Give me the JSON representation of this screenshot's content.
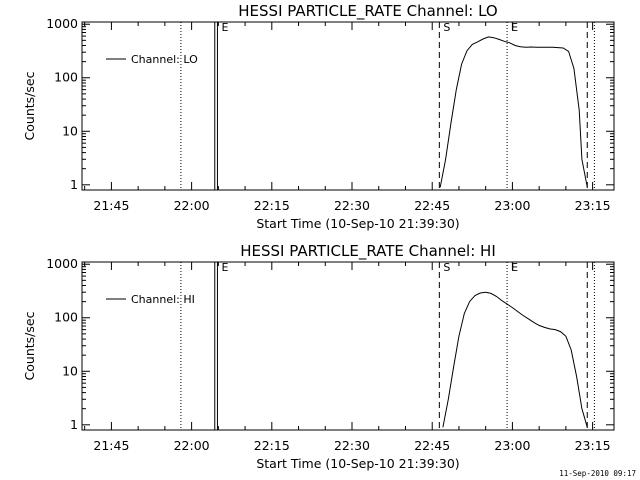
{
  "chart_data": [
    {
      "type": "line",
      "title": "HESSI PARTICLE_RATE Channel: LO",
      "xlabel": "Start Time (10-Sep-10 21:39:30)",
      "ylabel": "Counts/sec",
      "y_scale": "log",
      "xlim": [
        "21:39:30",
        "23:19:00"
      ],
      "ylim": [
        0.8,
        1100
      ],
      "x_ticks": [
        "21:45",
        "22:00",
        "22:15",
        "22:30",
        "22:45",
        "23:00",
        "23:15"
      ],
      "y_ticks": [
        {
          "value": 1,
          "label": "1"
        },
        {
          "value": 10,
          "label": "10"
        },
        {
          "value": 100,
          "label": "100"
        },
        {
          "value": 1000,
          "label": "1000"
        }
      ],
      "legend": {
        "position": "top-left",
        "entries": [
          "Channel: LO"
        ]
      },
      "series": [
        {
          "name": "Channel: LO",
          "x": [
            "22:46:30",
            "22:47:30",
            "22:48:30",
            "22:49:30",
            "22:50:30",
            "22:51:30",
            "22:52:30",
            "22:53:30",
            "22:54:30",
            "22:55:30",
            "22:56:30",
            "22:57:30",
            "22:58:30",
            "22:59:30",
            "23:00:30",
            "23:01:30",
            "23:02:30",
            "23:03:30",
            "23:04:30",
            "23:05:30",
            "23:06:30",
            "23:07:30",
            "23:08:30",
            "23:09:30",
            "23:10:30",
            "23:11:30",
            "23:12:30",
            "23:13:00",
            "23:14:00"
          ],
          "y": [
            0.9,
            3,
            14,
            60,
            180,
            320,
            420,
            470,
            530,
            580,
            560,
            520,
            480,
            450,
            400,
            380,
            370,
            375,
            370,
            370,
            370,
            370,
            365,
            360,
            310,
            150,
            25,
            3,
            0.9
          ]
        }
      ],
      "vertical_lines": [
        {
          "x": "21:58:00",
          "style": "dotted"
        },
        {
          "x": "22:04:20",
          "style": "solid"
        },
        {
          "x": "22:04:50",
          "style": "solid"
        },
        {
          "x": "22:46:20",
          "style": "dashed"
        },
        {
          "x": "22:59:00",
          "style": "dotted"
        },
        {
          "x": "23:14:00",
          "style": "dashed"
        },
        {
          "x": "23:15:20",
          "style": "dotted"
        }
      ],
      "markers": [
        {
          "x": "22:04:50",
          "label": "E"
        },
        {
          "x": "22:46:20",
          "label": "S"
        },
        {
          "x": "22:59:00",
          "label": "E"
        }
      ]
    },
    {
      "type": "line",
      "title": "HESSI PARTICLE_RATE Channel: HI",
      "xlabel": "Start Time (10-Sep-10 21:39:30)",
      "ylabel": "Counts/sec",
      "y_scale": "log",
      "xlim": [
        "21:39:30",
        "23:19:00"
      ],
      "ylim": [
        0.8,
        1100
      ],
      "x_ticks": [
        "21:45",
        "22:00",
        "22:15",
        "22:30",
        "22:45",
        "23:00",
        "23:15"
      ],
      "y_ticks": [
        {
          "value": 1,
          "label": "1"
        },
        {
          "value": 10,
          "label": "10"
        },
        {
          "value": 100,
          "label": "100"
        },
        {
          "value": 1000,
          "label": "1000"
        }
      ],
      "legend": {
        "position": "top-left",
        "entries": [
          "Channel: HI"
        ]
      },
      "series": [
        {
          "name": "Channel: HI",
          "x": [
            "22:47:00",
            "22:48:00",
            "22:49:00",
            "22:50:00",
            "22:51:00",
            "22:52:00",
            "22:53:00",
            "22:54:00",
            "22:55:00",
            "22:56:00",
            "22:57:00",
            "22:58:00",
            "22:59:00",
            "23:00:00",
            "23:01:00",
            "23:02:00",
            "23:03:00",
            "23:04:00",
            "23:05:00",
            "23:06:00",
            "23:07:00",
            "23:08:00",
            "23:09:00",
            "23:10:00",
            "23:11:00",
            "23:12:00",
            "23:13:00",
            "23:14:00"
          ],
          "y": [
            0.9,
            3,
            12,
            45,
            120,
            200,
            260,
            290,
            300,
            285,
            250,
            210,
            180,
            155,
            130,
            110,
            95,
            82,
            72,
            66,
            62,
            60,
            55,
            45,
            25,
            8,
            2,
            0.9
          ]
        }
      ],
      "vertical_lines": [
        {
          "x": "21:58:00",
          "style": "dotted"
        },
        {
          "x": "22:04:20",
          "style": "solid"
        },
        {
          "x": "22:04:50",
          "style": "solid"
        },
        {
          "x": "22:46:20",
          "style": "dashed"
        },
        {
          "x": "22:59:00",
          "style": "dotted"
        },
        {
          "x": "23:14:00",
          "style": "dashed"
        },
        {
          "x": "23:15:20",
          "style": "dotted"
        }
      ],
      "markers": [
        {
          "x": "22:04:50",
          "label": "E"
        },
        {
          "x": "22:46:20",
          "label": "S"
        },
        {
          "x": "22:59:00",
          "label": "E"
        }
      ]
    }
  ],
  "footer": {
    "timestamp": "11-Sep-2010 09:17"
  }
}
